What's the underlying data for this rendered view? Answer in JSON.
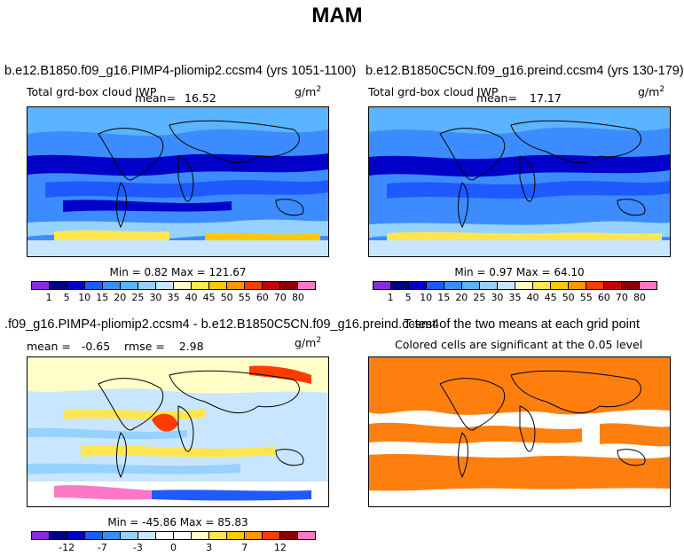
{
  "title": "MAM",
  "panels": [
    {
      "case": "b.e12.B1850.f09_g16.PIMP4-pliomip2.ccsm4 (yrs 1051-1100)",
      "var": "Total grd-box cloud IWP",
      "mean_label": "mean=",
      "mean": "16.52",
      "units": "g/m",
      "units_exp": "2",
      "minmax": "Min =    0.82 Max = 121.67",
      "cbar_colors": [
        "#8a2be2",
        "#00007f",
        "#0000c8",
        "#1e5aff",
        "#3c8cff",
        "#5ab4ff",
        "#96d2ff",
        "#c8e6ff",
        "#ffffc8",
        "#ffe650",
        "#ffc800",
        "#ff9600",
        "#ff3c00",
        "#c80000",
        "#8c0000",
        "#ff78c8"
      ],
      "cbar_labels": [
        "1",
        "5",
        "10",
        "15",
        "20",
        "25",
        "30",
        "35",
        "40",
        "45",
        "50",
        "55",
        "60",
        "70",
        "80"
      ]
    },
    {
      "case": "b.e12.B1850C5CN.f09_g16.preind.ccsm4 (yrs 130-179)",
      "var": "Total grd-box cloud IWP",
      "mean_label": "mean=",
      "mean": "17.17",
      "units": "g/m",
      "units_exp": "2",
      "minmax": "Min =    0.97 Max =  64.10",
      "cbar_colors": [
        "#8a2be2",
        "#00007f",
        "#0000c8",
        "#1e5aff",
        "#3c8cff",
        "#5ab4ff",
        "#96d2ff",
        "#c8e6ff",
        "#ffffc8",
        "#ffe650",
        "#ffc800",
        "#ff9600",
        "#ff3c00",
        "#c80000",
        "#8c0000",
        "#ff78c8"
      ],
      "cbar_labels": [
        "1",
        "5",
        "10",
        "15",
        "20",
        "25",
        "30",
        "35",
        "40",
        "45",
        "50",
        "55",
        "60",
        "70",
        "80"
      ]
    },
    {
      "case": ".f09_g16.PIMP4-pliomip2.ccsm4 - b.e12.B1850C5CN.f09_g16.preind.ccsm4",
      "stats": "mean =   -0.65    rmse =    2.98",
      "units": "g/m",
      "units_exp": "2",
      "minmax": "Min = -45.86 Max =   85.83",
      "cbar_colors": [
        "#8a2be2",
        "#00007f",
        "#0000c8",
        "#1e5aff",
        "#3c8cff",
        "#96d2ff",
        "#c8e6ff",
        "#ffffff",
        "#ffffff",
        "#ffffc8",
        "#ffe650",
        "#ffc800",
        "#ff9600",
        "#ff3c00",
        "#8c0000",
        "#ff78c8"
      ],
      "cbar_labels": [
        "-12",
        "-7",
        "-3",
        "0",
        "3",
        "7",
        "12"
      ]
    },
    {
      "title": "T-test of the two means at each grid point",
      "subtitle": "Colored cells are significant at the 0.05 level",
      "color": "#ff7f0e"
    }
  ]
}
